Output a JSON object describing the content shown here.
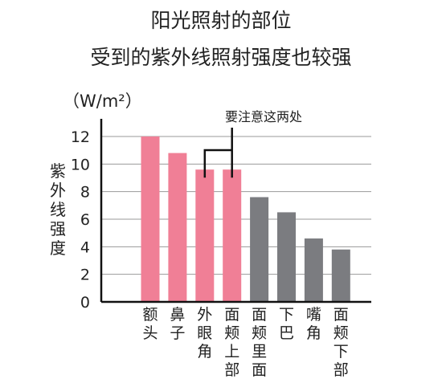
{
  "chart_data": {
    "type": "bar",
    "title": [
      "阳光照射的部位",
      "受到的紫外线照射强度也较强"
    ],
    "unit": "（W/m²）",
    "ylabel": "紫外线强度",
    "ylim": [
      0,
      12
    ],
    "yticks": [
      0,
      2,
      4,
      6,
      8,
      10,
      12
    ],
    "grid": true,
    "categories": [
      "额头",
      "鼻子",
      "外眼角",
      "面颊上部",
      "面颊里面",
      "下巴",
      "嘴角",
      "面颊下部"
    ],
    "values": [
      12.0,
      10.8,
      9.6,
      9.6,
      7.6,
      6.5,
      4.6,
      3.8
    ],
    "highlight_color": "#f07f96",
    "normal_color": "#7b7c80",
    "highlighted": [
      true,
      true,
      true,
      true,
      false,
      false,
      false,
      false
    ],
    "annotation": "要注意这两处"
  }
}
